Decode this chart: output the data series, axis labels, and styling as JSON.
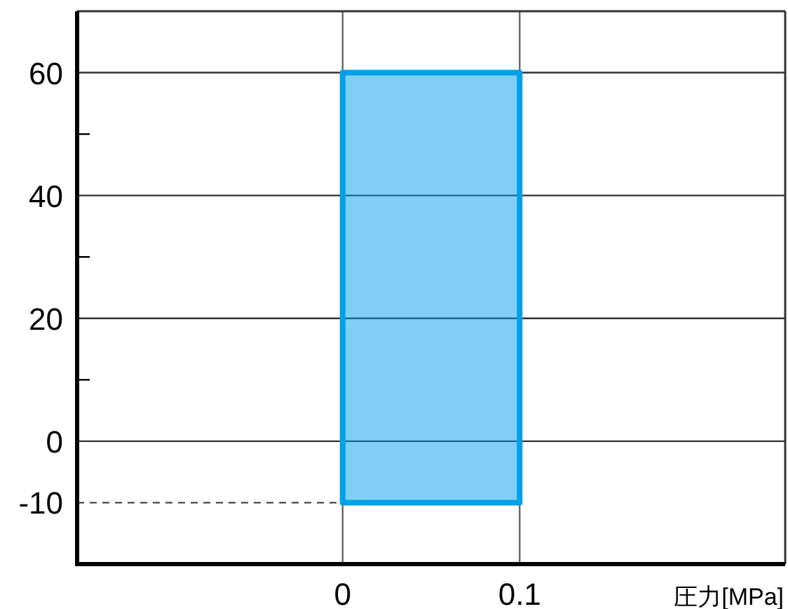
{
  "chart_data": {
    "type": "bar",
    "xlabel": "圧力[MPa]",
    "series": [
      {
        "color": "#00a0e9",
        "x": [
          0.05
        ],
        "values": [
          70
        ],
        "base": [
          -10
        ]
      }
    ],
    "xlim": [
      -0.15,
      0.25
    ],
    "ylim": [
      -20,
      70
    ],
    "xticks": [
      0,
      0.1
    ],
    "yticks": [
      0,
      {
        "value": 10,
        "label": null
      },
      20,
      {
        "value": 30,
        "label": null
      },
      40,
      {
        "value": 50,
        "label": null
      },
      60
    ],
    "ref_lines": [
      {
        "axis": "y",
        "value": -10,
        "label": "-10",
        "line_style": "dashed"
      }
    ],
    "grid": true
  }
}
